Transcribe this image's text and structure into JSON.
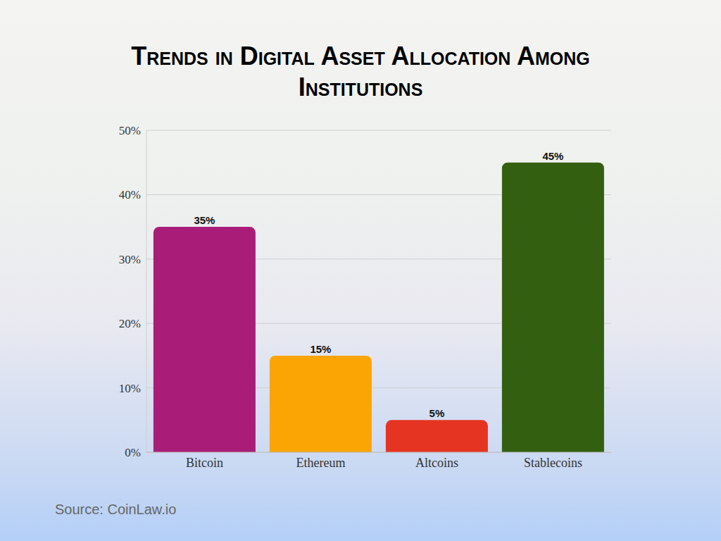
{
  "chart_data": {
    "type": "bar",
    "title": "Trends in Digital Asset Allocation Among Institutions",
    "source": "Source: CoinLaw.io",
    "categories": [
      "Bitcoin",
      "Ethereum",
      "Altcoins",
      "Stablecoins"
    ],
    "values": [
      35,
      15,
      5,
      45
    ],
    "value_labels": [
      "35%",
      "15%",
      "5%",
      "45%"
    ],
    "colors": [
      "#a91d78",
      "#fba504",
      "#e63422",
      "#336010"
    ],
    "ylim": [
      0,
      50
    ],
    "yticks": [
      {
        "value": 0,
        "label": "0%"
      },
      {
        "value": 10,
        "label": "10%"
      },
      {
        "value": 20,
        "label": "20%"
      },
      {
        "value": 30,
        "label": "30%"
      },
      {
        "value": 40,
        "label": "40%"
      },
      {
        "value": 50,
        "label": "50%"
      }
    ],
    "grid": true,
    "data_labels": true
  }
}
